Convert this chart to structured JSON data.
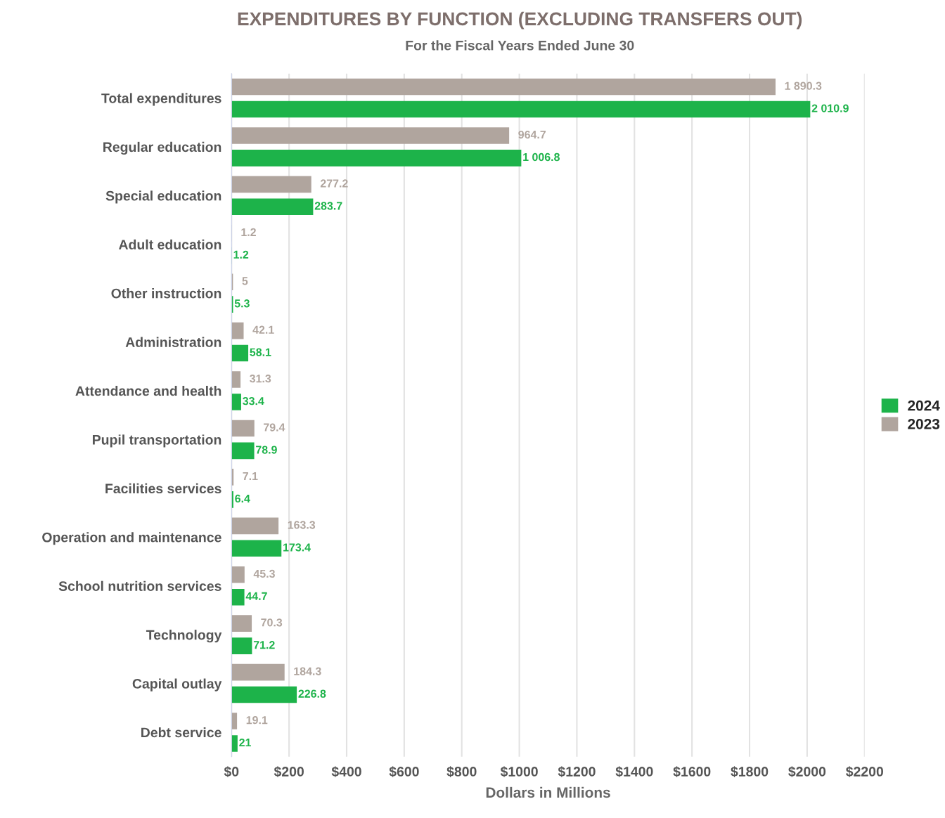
{
  "chart_data": {
    "type": "bar",
    "orientation": "horizontal",
    "title": "EXPENDITURES BY FUNCTION (EXCLUDING TRANSFERS OUT)",
    "subtitle": "For the Fiscal Years Ended June 30",
    "xlabel": "Dollars in Millions",
    "categories": [
      "Total expenditures",
      "Regular education",
      "Special education",
      "Adult education",
      "Other instruction",
      "Administration",
      "Attendance and health",
      "Pupil transportation",
      "Facilities services",
      "Operation and maintenance",
      "School nutrition services",
      "Technology",
      "Capital outlay",
      "Debt service"
    ],
    "series": [
      {
        "name": "2024",
        "color": "#1db34a",
        "values": [
          2010.9,
          1006.8,
          283.7,
          1.2,
          5.3,
          58.1,
          33.4,
          78.9,
          6.4,
          173.4,
          44.7,
          71.2,
          226.8,
          21
        ],
        "value_labels": [
          "2 010.9",
          "1 006.8",
          "283.7",
          "1.2",
          "5.3",
          "58.1",
          "33.4",
          "78.9",
          "6.4",
          "173.4",
          "44.7",
          "71.2",
          "226.8",
          "21"
        ]
      },
      {
        "name": "2023",
        "color": "#b0a59e",
        "values": [
          1890.3,
          964.7,
          277.2,
          1.2,
          5,
          42.1,
          31.3,
          79.4,
          7.1,
          163.3,
          45.3,
          70.3,
          184.3,
          19.1
        ],
        "value_labels": [
          "1 890.3",
          "964.7",
          "277.2",
          "1.2",
          "5",
          "42.1",
          "31.3",
          "79.4",
          "7.1",
          "163.3",
          "45.3",
          "70.3",
          "184.3",
          "19.1"
        ]
      }
    ],
    "xlim": [
      0,
      2200
    ],
    "xticks": [
      {
        "value": 0,
        "label": "$0"
      },
      {
        "value": 200,
        "label": "$200"
      },
      {
        "value": 400,
        "label": "$400"
      },
      {
        "value": 600,
        "label": "$600"
      },
      {
        "value": 800,
        "label": "$800"
      },
      {
        "value": 1000,
        "label": "$1000"
      },
      {
        "value": 1200,
        "label": "$1200"
      },
      {
        "value": 1400,
        "label": "$1400"
      },
      {
        "value": 1600,
        "label": "$1600"
      },
      {
        "value": 1800,
        "label": "$1800"
      },
      {
        "value": 2000,
        "label": "$2000"
      },
      {
        "value": 2200,
        "label": "$2200"
      }
    ],
    "grid": "x",
    "legend": "right"
  }
}
